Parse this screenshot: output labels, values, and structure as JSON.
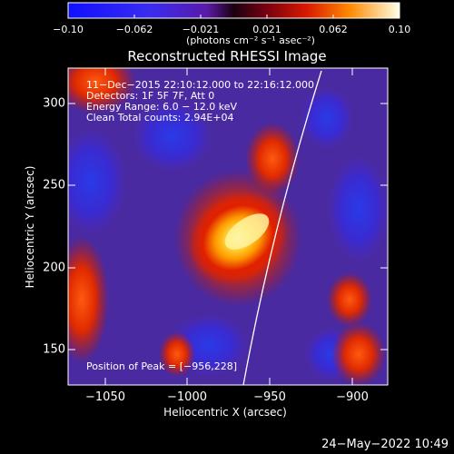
{
  "colorbar": {
    "tick_labels": [
      "−0.10",
      "−0.062",
      "−0.021",
      "0.021",
      "0.062",
      "0.10"
    ],
    "units_label": "(photons cm⁻² s⁻¹ asec⁻²)",
    "range": [
      -0.1,
      0.1
    ]
  },
  "image": {
    "title": "Reconstructed RHESSI Image",
    "info_lines": [
      "11−Dec−2015 22:10:12.000 to 22:16:12.000",
      "Detectors: 1F 5F 7F, Att 0",
      "Energy Range: 6.0 − 12.0 keV",
      "Clean     Total counts: 2.94E+04"
    ],
    "peak_text": "Position of Peak = [−956,228]",
    "peak_position": [
      -956,
      228
    ],
    "xlabel": "Heliocentric X (arcsec)",
    "ylabel": "Heliocentric Y (arcsec)",
    "x_ticks": [
      "−1050",
      "−1000",
      "−950",
      "−900"
    ],
    "y_ticks": [
      "300",
      "250",
      "200",
      "150"
    ],
    "xlim": [
      -1072,
      -875
    ],
    "ylim": [
      128,
      323
    ],
    "limb_line": "white"
  },
  "footer": {
    "date": "24−May−2022 10:49"
  }
}
